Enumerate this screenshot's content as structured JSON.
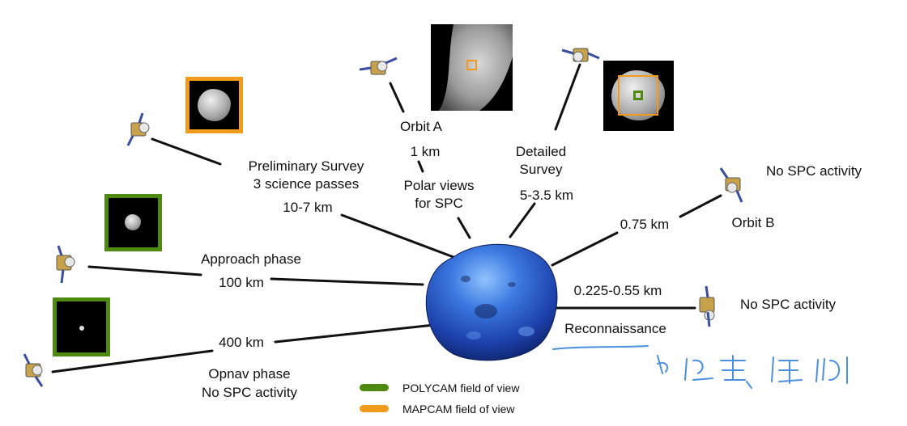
{
  "labels": {
    "preliminary_survey": "Preliminary Survey",
    "science_passes": "3 science passes",
    "prelim_range": "10-7 km",
    "orbit_a": "Orbit A",
    "orbit_a_range": "1 km",
    "polar_views": "Polar views",
    "for_spc": "for SPC",
    "detailed": "Detailed",
    "survey": "Survey",
    "detailed_range": "5-3.5 km",
    "no_spc_orbit_b": "No SPC activity",
    "orbit_b_range": "0.75 km",
    "orbit_b": "Orbit B",
    "approach_phase": "Approach phase",
    "approach_range": "100 km",
    "recon_range": "0.225-0.55 km",
    "reconnaissance": "Reconnaissance",
    "no_spc_recon": "No SPC activity",
    "opnav_range": "400 km",
    "opnav_phase": "Opnav phase",
    "no_spc_opnav": "No SPC activity"
  },
  "legend": {
    "polycam": "POLYCAM field of view",
    "mapcam": "MAPCAM field of view"
  },
  "colors": {
    "polycam": "#4f8a10",
    "mapcam": "#f29a1b",
    "asteroid": "#2d5fd0",
    "handwriting": "#4a8fe0"
  }
}
